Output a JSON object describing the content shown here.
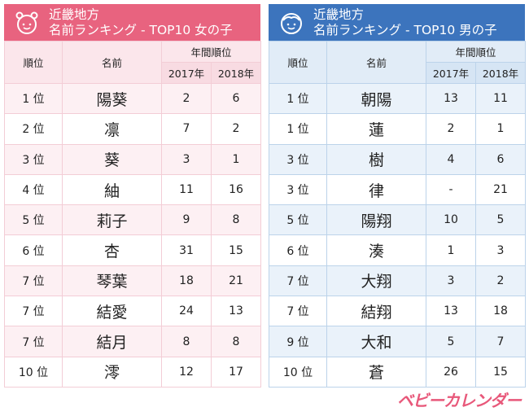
{
  "girls": {
    "title1": "近畿地方",
    "title2": "名前ランキング - TOP10 女の子",
    "accent": "#e8637f",
    "headers": {
      "rank": "順位",
      "name": "名前",
      "annual": "年間順位",
      "y2017": "2017年",
      "y2018": "2018年"
    },
    "rows": [
      {
        "rank": "1 位",
        "name": "陽葵",
        "y2017": "2",
        "y2018": "6"
      },
      {
        "rank": "2 位",
        "name": "凛",
        "y2017": "7",
        "y2018": "2"
      },
      {
        "rank": "3 位",
        "name": "葵",
        "y2017": "3",
        "y2018": "1"
      },
      {
        "rank": "4 位",
        "name": "紬",
        "y2017": "11",
        "y2018": "16"
      },
      {
        "rank": "5 位",
        "name": "莉子",
        "y2017": "9",
        "y2018": "8"
      },
      {
        "rank": "6 位",
        "name": "杏",
        "y2017": "31",
        "y2018": "15"
      },
      {
        "rank": "7 位",
        "name": "琴葉",
        "y2017": "18",
        "y2018": "21"
      },
      {
        "rank": "7 位",
        "name": "結愛",
        "y2017": "24",
        "y2018": "13"
      },
      {
        "rank": "7 位",
        "name": "結月",
        "y2017": "8",
        "y2018": "8"
      },
      {
        "rank": "10 位",
        "name": "澪",
        "y2017": "12",
        "y2018": "17"
      }
    ]
  },
  "boys": {
    "title1": "近畿地方",
    "title2": "名前ランキング - TOP10 男の子",
    "accent": "#3c74bd",
    "headers": {
      "rank": "順位",
      "name": "名前",
      "annual": "年間順位",
      "y2017": "2017年",
      "y2018": "2018年"
    },
    "rows": [
      {
        "rank": "1 位",
        "name": "朝陽",
        "y2017": "13",
        "y2018": "11"
      },
      {
        "rank": "1 位",
        "name": "蓮",
        "y2017": "2",
        "y2018": "1"
      },
      {
        "rank": "3 位",
        "name": "樹",
        "y2017": "4",
        "y2018": "6"
      },
      {
        "rank": "3 位",
        "name": "律",
        "y2017": "-",
        "y2018": "21"
      },
      {
        "rank": "5 位",
        "name": "陽翔",
        "y2017": "10",
        "y2018": "5"
      },
      {
        "rank": "6 位",
        "name": "湊",
        "y2017": "1",
        "y2018": "3"
      },
      {
        "rank": "7 位",
        "name": "大翔",
        "y2017": "3",
        "y2018": "2"
      },
      {
        "rank": "7 位",
        "name": "結翔",
        "y2017": "13",
        "y2018": "18"
      },
      {
        "rank": "9 位",
        "name": "大和",
        "y2017": "5",
        "y2018": "7"
      },
      {
        "rank": "10 位",
        "name": "蒼",
        "y2017": "26",
        "y2018": "15"
      }
    ]
  },
  "logo": "ベビーカレンダー"
}
